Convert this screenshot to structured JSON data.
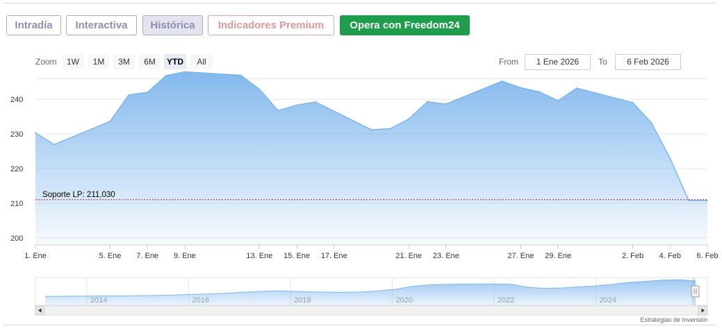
{
  "tabs": [
    {
      "label": "Intradía",
      "state": "normal"
    },
    {
      "label": "Interactiva",
      "state": "normal"
    },
    {
      "label": "Histórica",
      "state": "active"
    },
    {
      "label": "Indicadores Premium",
      "state": "premium"
    },
    {
      "label": "Opera con Freedom24",
      "state": "cta"
    }
  ],
  "toolbar": {
    "zoom_label": "Zoom",
    "zoom_options": [
      "1W",
      "1M",
      "3M",
      "6M",
      "YTD",
      "All"
    ],
    "zoom_selected": "YTD",
    "from_label": "From",
    "from_value": "1 Ene 2026",
    "to_label": "To",
    "to_value": "6 Feb 2026"
  },
  "colors": {
    "series": "#7cb5ec",
    "support_line": "#8b1a1a",
    "cta": "#1e9e4a",
    "tab_text": "#8d8db4",
    "premium_text": "#e09999"
  },
  "chart_data": {
    "type": "area",
    "ylim": [
      198,
      246
    ],
    "yticks": [
      200,
      210,
      220,
      230,
      240
    ],
    "x_tick_labels": [
      "1. Ene",
      "5. Ene",
      "7. Ene",
      "9. Ene",
      "13. Ene",
      "15. Ene",
      "17. Ene",
      "21. Ene",
      "23. Ene",
      "27. Ene",
      "29. Ene",
      "2. Feb",
      "4. Feb",
      "6. Feb"
    ],
    "series": [
      {
        "dates": [
          "2026-01-01",
          "2026-01-02",
          "2026-01-05",
          "2026-01-06",
          "2026-01-07",
          "2026-01-08",
          "2026-01-09",
          "2026-01-12",
          "2026-01-13",
          "2026-01-14",
          "2026-01-15",
          "2026-01-16",
          "2026-01-19",
          "2026-01-20",
          "2026-01-21",
          "2026-01-22",
          "2026-01-23",
          "2026-01-26",
          "2026-01-27",
          "2026-01-28",
          "2026-01-29",
          "2026-01-30",
          "2026-02-02",
          "2026-02-03",
          "2026-02-04",
          "2026-02-05",
          "2026-02-06"
        ],
        "values": [
          230.3,
          226.9,
          233.6,
          241.2,
          242.0,
          246.8,
          247.9,
          246.9,
          242.9,
          236.7,
          238.3,
          239.2,
          231.2,
          231.5,
          234.3,
          239.3,
          238.6,
          245.2,
          243.3,
          242.1,
          239.6,
          243.2,
          239.0,
          233.2,
          222.9,
          210.8,
          210.8
        ]
      }
    ],
    "annotations": [
      {
        "type": "horizontal_line",
        "value": 211.03,
        "label": "Soporte LP: 211,030"
      }
    ]
  },
  "navigator": {
    "year_labels": [
      "2014",
      "2016",
      "2018",
      "2020",
      "2022",
      "2024"
    ],
    "history_values": [
      30,
      30,
      31,
      31,
      32,
      32,
      33,
      34,
      36,
      38,
      40,
      43,
      47,
      50,
      52,
      50,
      48,
      47,
      46,
      48,
      52,
      58,
      70,
      76,
      78,
      79,
      80,
      80,
      78,
      66,
      62,
      64,
      68,
      72,
      78,
      86,
      90,
      95,
      97,
      92
    ]
  },
  "credits": "Estrategias de Inversión"
}
